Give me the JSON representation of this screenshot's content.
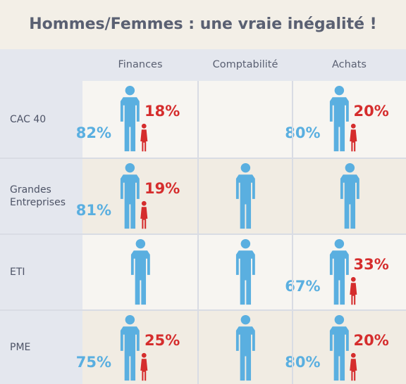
{
  "title": "Hommes/Femmes : une vraie inégalité !",
  "colors": {
    "men": "#5aafe0",
    "women": "#d52d2d",
    "text": "#5a6072"
  },
  "chart_data": {
    "type": "table",
    "columns": [
      "Finances",
      "Comptabilité",
      "Achats"
    ],
    "rows": [
      {
        "label": "CAC 40",
        "cells": [
          {
            "men": "82%",
            "women": "18%"
          },
          null,
          {
            "men": "80%",
            "women": "20%"
          }
        ]
      },
      {
        "label": "Grandes Entreprises",
        "cells": [
          {
            "men": "81%",
            "women": "19%"
          },
          {
            "men": "",
            "women": ""
          },
          {
            "men": "",
            "women": ""
          }
        ]
      },
      {
        "label": "ETI",
        "cells": [
          {
            "men": "",
            "women": ""
          },
          {
            "men": "",
            "women": ""
          },
          {
            "men": "67%",
            "women": "33%"
          }
        ]
      },
      {
        "label": "PME",
        "cells": [
          {
            "men": "75%",
            "women": "25%"
          },
          {
            "men": "",
            "women": ""
          },
          {
            "men": "80%",
            "women": "20%"
          }
        ]
      }
    ]
  }
}
